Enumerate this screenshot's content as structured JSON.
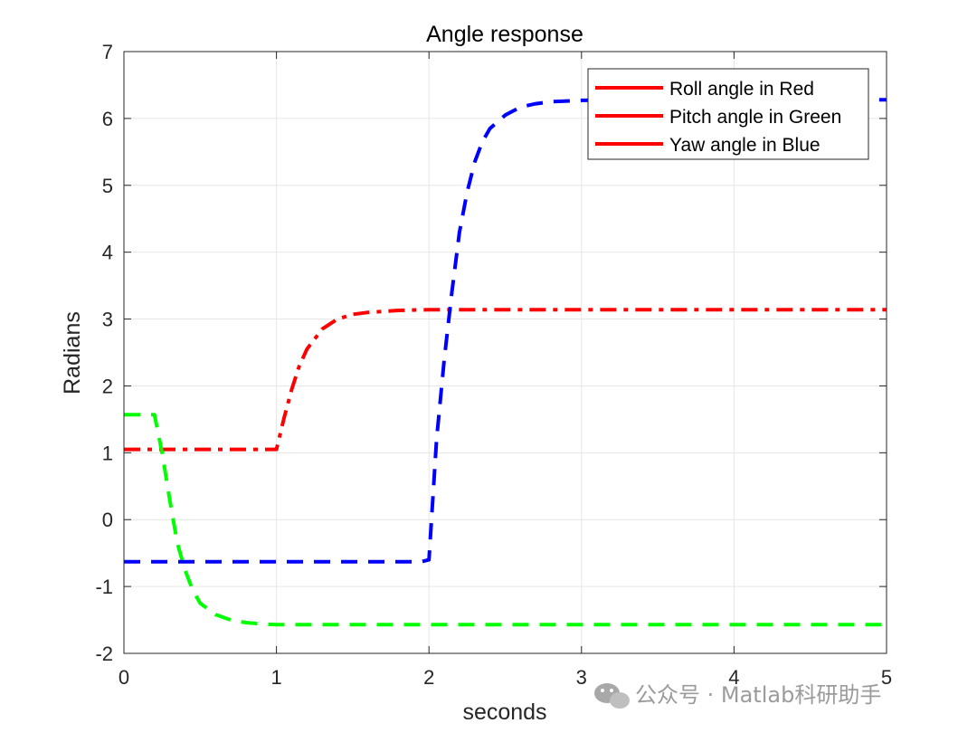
{
  "chart_data": {
    "type": "line",
    "title": "Angle response",
    "xlabel": "seconds",
    "ylabel": "Radians",
    "xlim": [
      0,
      5
    ],
    "ylim": [
      -2,
      7
    ],
    "xticks": [
      "0",
      "1",
      "2",
      "3",
      "4",
      "5"
    ],
    "yticks": [
      "-2",
      "-1",
      "0",
      "1",
      "2",
      "3",
      "4",
      "5",
      "6",
      "7"
    ],
    "grid": true,
    "legend_position": "top-right",
    "legend": [
      "Roll angle in Red",
      "Pitch angle in Green",
      "Yaw angle in Blue"
    ],
    "legend_color": "#ff0000",
    "series": [
      {
        "color": "#ff0000",
        "dash": "dash-dot",
        "x": [
          0,
          0.5,
          1.0,
          1.05,
          1.1,
          1.15,
          1.2,
          1.3,
          1.4,
          1.5,
          1.6,
          1.8,
          2.0,
          2.5,
          3.0,
          4.0,
          5.0
        ],
        "y": [
          1.05,
          1.05,
          1.05,
          1.52,
          1.95,
          2.3,
          2.55,
          2.85,
          3.0,
          3.07,
          3.1,
          3.13,
          3.14,
          3.14,
          3.14,
          3.14,
          3.14
        ]
      },
      {
        "color": "#00ff00",
        "dash": "dash",
        "x": [
          0,
          0.2,
          0.25,
          0.3,
          0.35,
          0.4,
          0.45,
          0.5,
          0.6,
          0.7,
          0.8,
          0.9,
          1.0,
          1.2,
          1.5,
          2.0,
          3.0,
          4.0,
          5.0
        ],
        "y": [
          1.57,
          1.57,
          1.0,
          0.3,
          -0.35,
          -0.75,
          -1.05,
          -1.25,
          -1.42,
          -1.5,
          -1.54,
          -1.56,
          -1.57,
          -1.57,
          -1.57,
          -1.57,
          -1.57,
          -1.57,
          -1.57
        ]
      },
      {
        "color": "#0000ff",
        "dash": "dash",
        "x": [
          0,
          0.5,
          1.0,
          1.5,
          1.95,
          2.0,
          2.05,
          2.1,
          2.15,
          2.2,
          2.25,
          2.3,
          2.35,
          2.4,
          2.5,
          2.6,
          2.7,
          2.8,
          3.0,
          3.5,
          4.0,
          5.0
        ],
        "y": [
          -0.63,
          -0.63,
          -0.63,
          -0.63,
          -0.63,
          -0.6,
          1.2,
          2.4,
          3.4,
          4.3,
          4.9,
          5.35,
          5.65,
          5.85,
          6.05,
          6.17,
          6.22,
          6.25,
          6.27,
          6.28,
          6.28,
          6.28
        ]
      }
    ]
  },
  "watermark": {
    "text": "公众号 · Matlab科研助手",
    "icon": "wechat-icon"
  }
}
